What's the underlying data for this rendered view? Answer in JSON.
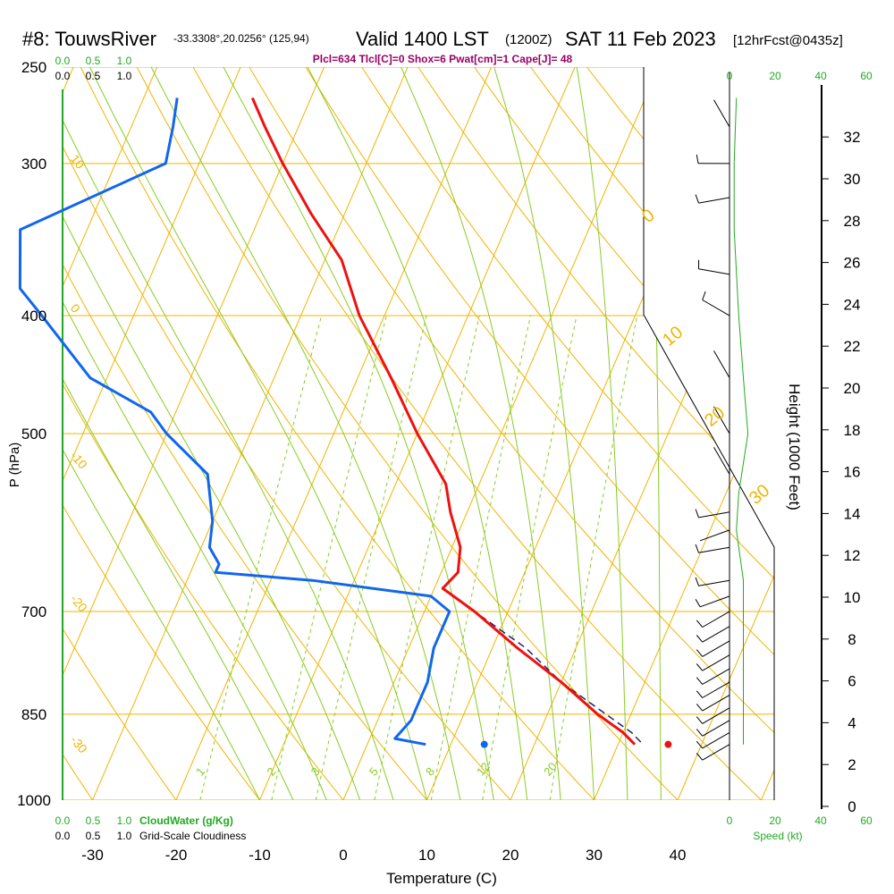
{
  "header": {
    "title": "#8: TouwsRiver",
    "coords": "-33.3308°,20.0256° (125,94)",
    "valid": "Valid 1400 LST",
    "zulu": "(1200Z)",
    "date": "SAT 11 Feb 2023",
    "fcst": "[12hrFcst@0435z]",
    "params": "Plcl=634 Tlcl[C]=0 Shox=6 Pwat[cm]=1 Cape[J]= 48"
  },
  "colors": {
    "temperature": "#ee1111",
    "dewpoint": "#1166ee",
    "parcel": "#222266",
    "isobar": "#f0b400",
    "dry_adiabat": "#f0b400",
    "moist_adiabat": "#88cc22",
    "mixing_ratio": "#88cc22",
    "cloud": "#22aa22",
    "wind_profile": "#22aa22",
    "params": "#990066"
  },
  "chart_data": {
    "type": "skew-t",
    "xlabel": "Temperature (C)",
    "ylabel": "P (hPa)",
    "ylabel_right": "Height (1000 Feet)",
    "x_ticks": [
      -30,
      -20,
      -10,
      0,
      10,
      20,
      30,
      40
    ],
    "p_ticks": [
      250,
      300,
      400,
      500,
      700,
      850,
      1000
    ],
    "height_ticks_kft": [
      0,
      2,
      4,
      6,
      8,
      10,
      12,
      14,
      16,
      18,
      20,
      22,
      24,
      26,
      28,
      30,
      32
    ],
    "xlim": [
      -35,
      52
    ],
    "plim": [
      250,
      1000
    ],
    "isotherm_labels": [
      "10",
      "0",
      "-10",
      "-20",
      "-30"
    ],
    "theta_labels": [
      "0",
      "10",
      "20",
      "30"
    ],
    "mixing_ratio_labels": [
      "1",
      "2",
      "3",
      "5",
      "8",
      "12",
      "20"
    ],
    "mixing_ratio_values": [
      1,
      2,
      3,
      5,
      8,
      12,
      20
    ],
    "cloud_scale_labels": [
      "0.0",
      "0.5",
      "1.0"
    ],
    "cloud_water_label": "CloudWater (g/Kg)",
    "cloudiness_label": "Grid-Scale Cloudiness",
    "wind_speed_ticks": [
      "0",
      "20",
      "40",
      "60"
    ],
    "wind_speed_label": "Speed (kt)",
    "temperature": {
      "name": "Temperature",
      "p": [
        265,
        280,
        300,
        330,
        360,
        400,
        450,
        500,
        550,
        580,
        620,
        650,
        670,
        700,
        750,
        800,
        850,
        880,
        900
      ],
      "t": [
        -47,
        -44,
        -40,
        -34,
        -28,
        -23,
        -16,
        -10,
        -4,
        -2,
        1,
        2,
        1,
        6,
        13,
        20,
        26,
        30,
        32
      ]
    },
    "dewpoint": {
      "name": "Dewpoint",
      "p": [
        265,
        280,
        300,
        340,
        380,
        400,
        450,
        480,
        500,
        540,
        590,
        620,
        640,
        650,
        660,
        680,
        700,
        750,
        800,
        860,
        890,
        900
      ],
      "td": [
        -56,
        -55,
        -54,
        -68,
        -65,
        -61,
        -52,
        -43,
        -40,
        -33,
        -30,
        -29,
        -27,
        -27,
        -15,
        0,
        3,
        3,
        4,
        4,
        3,
        7
      ]
    },
    "parcel": {
      "name": "Parcel",
      "p": [
        670,
        700,
        750,
        800,
        850,
        880,
        900
      ],
      "t": [
        1,
        6,
        14,
        20,
        27,
        31,
        33
      ]
    },
    "surface_temperature": 36,
    "surface_dewpoint": 14,
    "surface_pressure": 900,
    "wind_speed_profile": {
      "p": [
        265,
        300,
        340,
        400,
        450,
        500,
        560,
        600,
        620,
        660,
        700,
        800,
        900
      ],
      "kt": [
        3,
        2,
        2,
        4,
        6,
        8,
        4,
        3,
        4,
        6,
        6,
        6,
        6
      ]
    },
    "wind_barbs": {
      "p": [
        280,
        300,
        320,
        370,
        400,
        450,
        500,
        540,
        580,
        600,
        620,
        660,
        680,
        700,
        720,
        740,
        760,
        780,
        800,
        820,
        840,
        860,
        880,
        900
      ],
      "speed_kt": [
        5,
        10,
        10,
        10,
        10,
        5,
        5,
        5,
        10,
        5,
        10,
        10,
        10,
        10,
        10,
        10,
        10,
        10,
        10,
        10,
        10,
        10,
        10,
        10
      ],
      "dir_deg": [
        330,
        270,
        260,
        280,
        300,
        330,
        330,
        330,
        260,
        250,
        260,
        260,
        250,
        240,
        240,
        240,
        240,
        240,
        240,
        240,
        240,
        240,
        240,
        240
      ]
    }
  }
}
